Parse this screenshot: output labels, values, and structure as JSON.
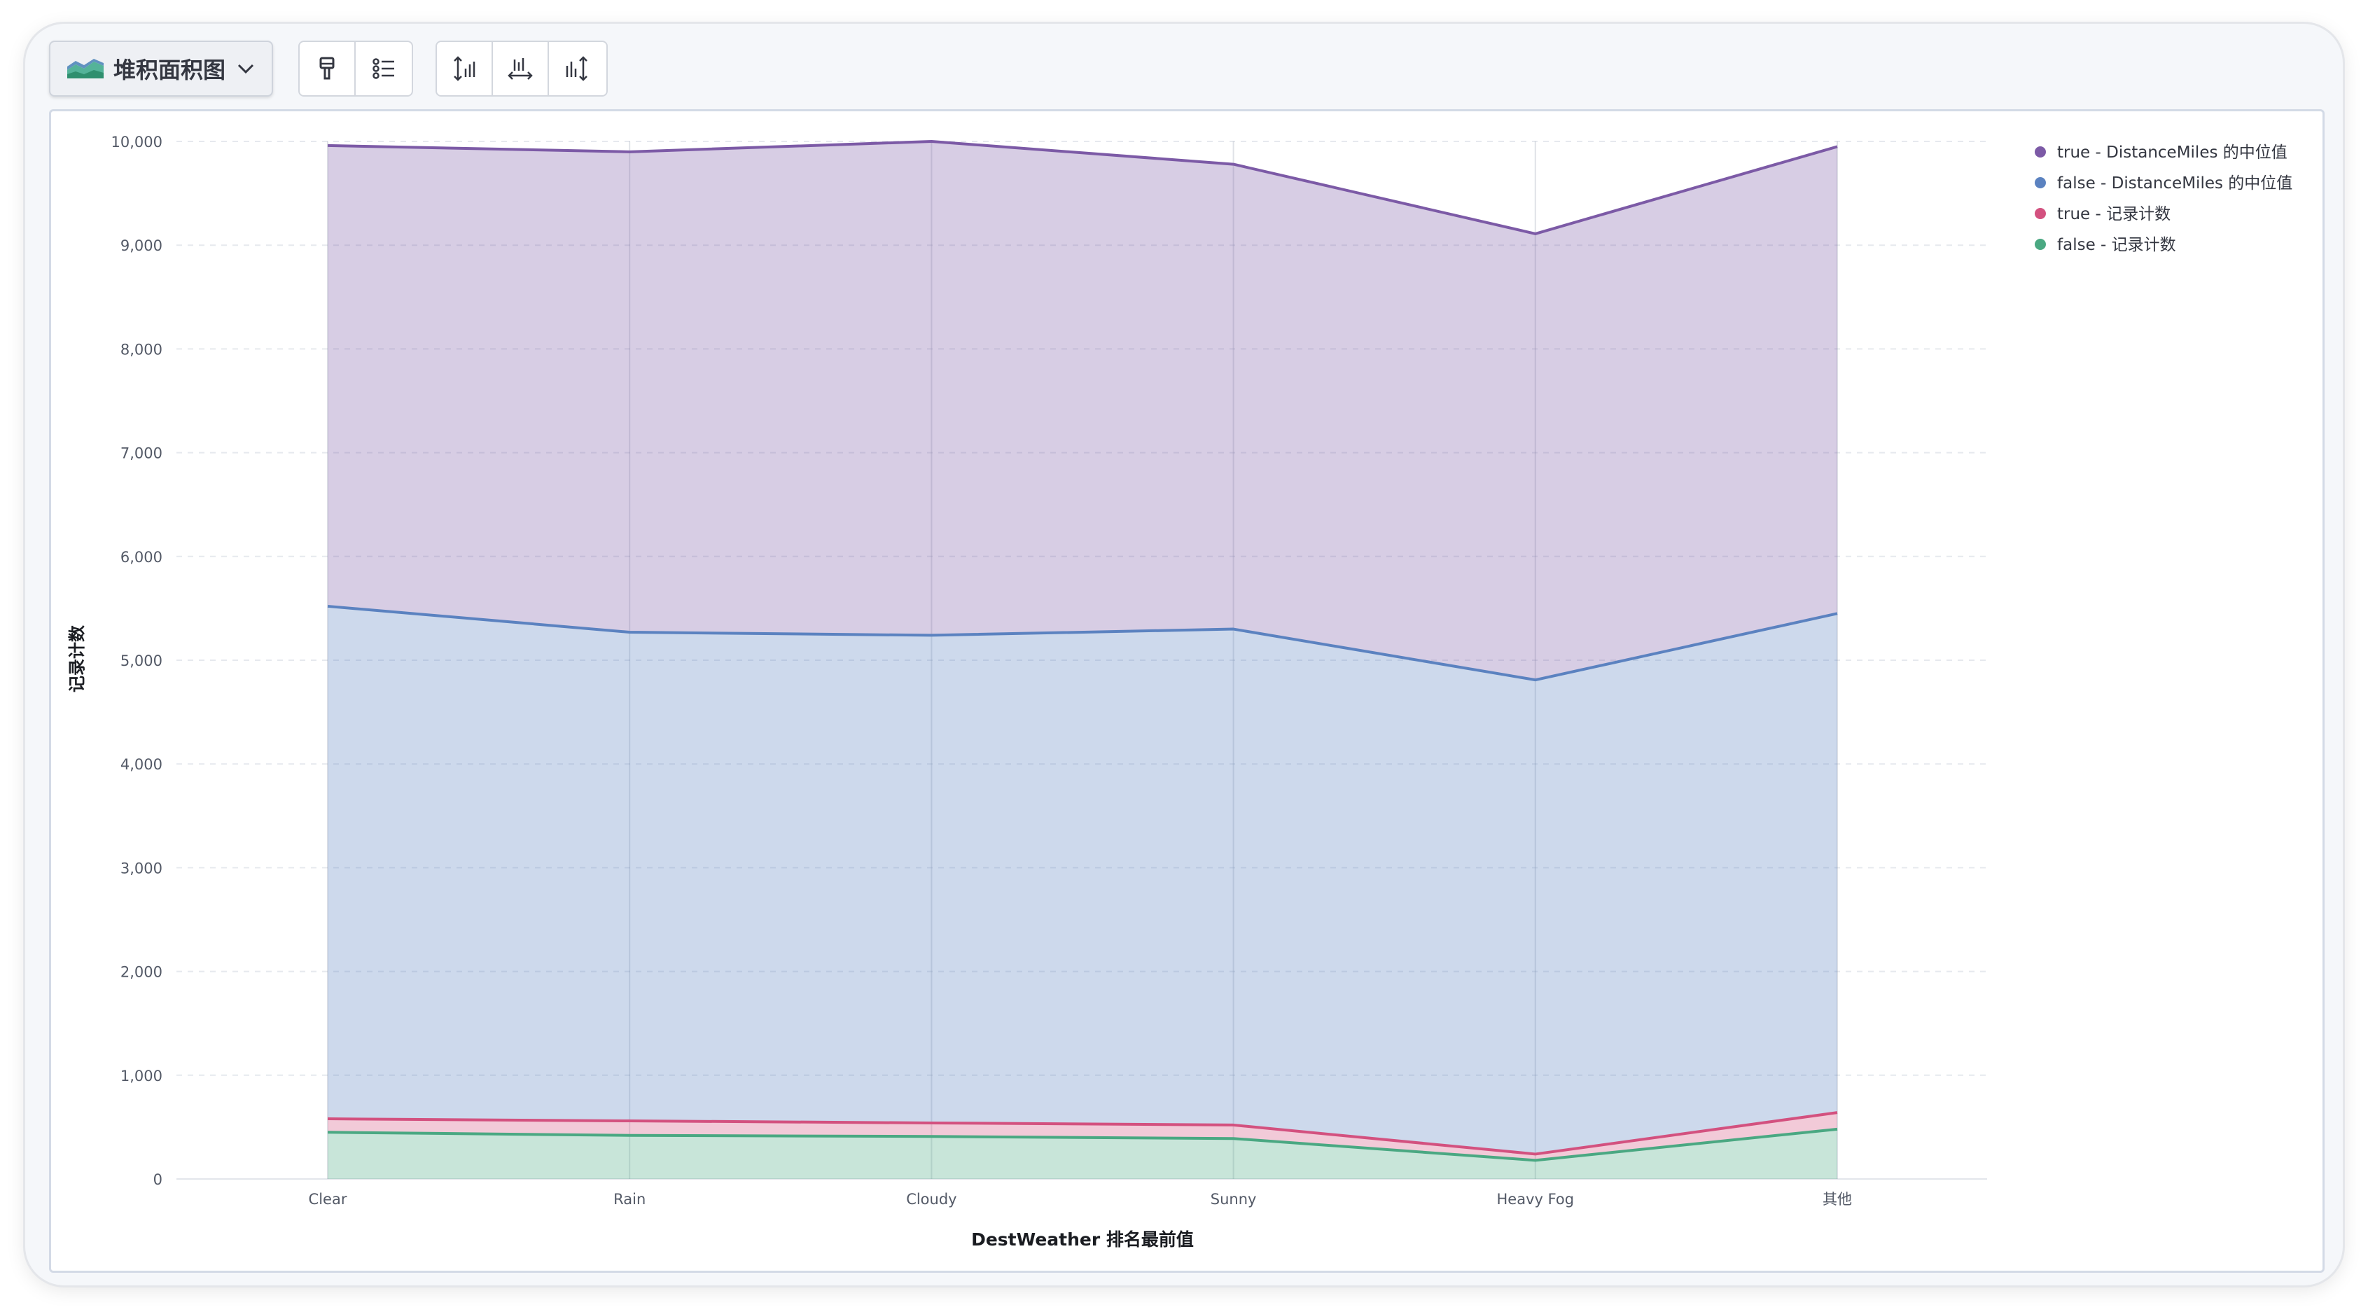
{
  "toolbar": {
    "chart_type_label": "堆积面积图",
    "chart_type_icon": "stacked-area-chart-icon",
    "buttons_group1": [
      {
        "icon": "paint-brush-icon"
      },
      {
        "icon": "list-settings-icon"
      }
    ],
    "buttons_group2": [
      {
        "icon": "left-axis-settings-icon"
      },
      {
        "icon": "bottom-axis-settings-icon"
      },
      {
        "icon": "right-axis-settings-icon"
      }
    ]
  },
  "colors": {
    "true_distance": "#7c5aa6",
    "false_distance": "#5b82c0",
    "true_count": "#d3517f",
    "false_count": "#4aa882"
  },
  "chart_data": {
    "type": "area",
    "stacked": true,
    "title": "",
    "xlabel": "DestWeather 排名最前值",
    "ylabel": "记录计数",
    "ylim": [
      0,
      10000
    ],
    "yticks": [
      0,
      1000,
      2000,
      3000,
      4000,
      5000,
      6000,
      7000,
      8000,
      9000,
      10000
    ],
    "ytick_labels": [
      "0",
      "1,000",
      "2,000",
      "3,000",
      "4,000",
      "5,000",
      "6,000",
      "7,000",
      "8,000",
      "9,000",
      "10,000"
    ],
    "categories": [
      "Clear",
      "Rain",
      "Cloudy",
      "Sunny",
      "Heavy Fog",
      "其他"
    ],
    "grid": true,
    "legend_position": "top-right",
    "series": [
      {
        "name": "false - 记录计数",
        "color": "#4aa882",
        "values": [
          450,
          420,
          410,
          390,
          180,
          480
        ]
      },
      {
        "name": "true - 记录计数",
        "color": "#d3517f",
        "values": [
          130,
          140,
          130,
          130,
          60,
          160
        ]
      },
      {
        "name": "false - DistanceMiles 的中位值",
        "color": "#5b82c0",
        "values": [
          4940,
          4710,
          4700,
          4780,
          4570,
          4810
        ]
      },
      {
        "name": "true - DistanceMiles 的中位值",
        "color": "#7c5aa6",
        "values": [
          4440,
          4630,
          4760,
          4480,
          4300,
          4500
        ]
      }
    ],
    "legend_order": [
      "true - DistanceMiles 的中位值",
      "false - DistanceMiles 的中位值",
      "true - 记录计数",
      "false - 记录计数"
    ]
  }
}
